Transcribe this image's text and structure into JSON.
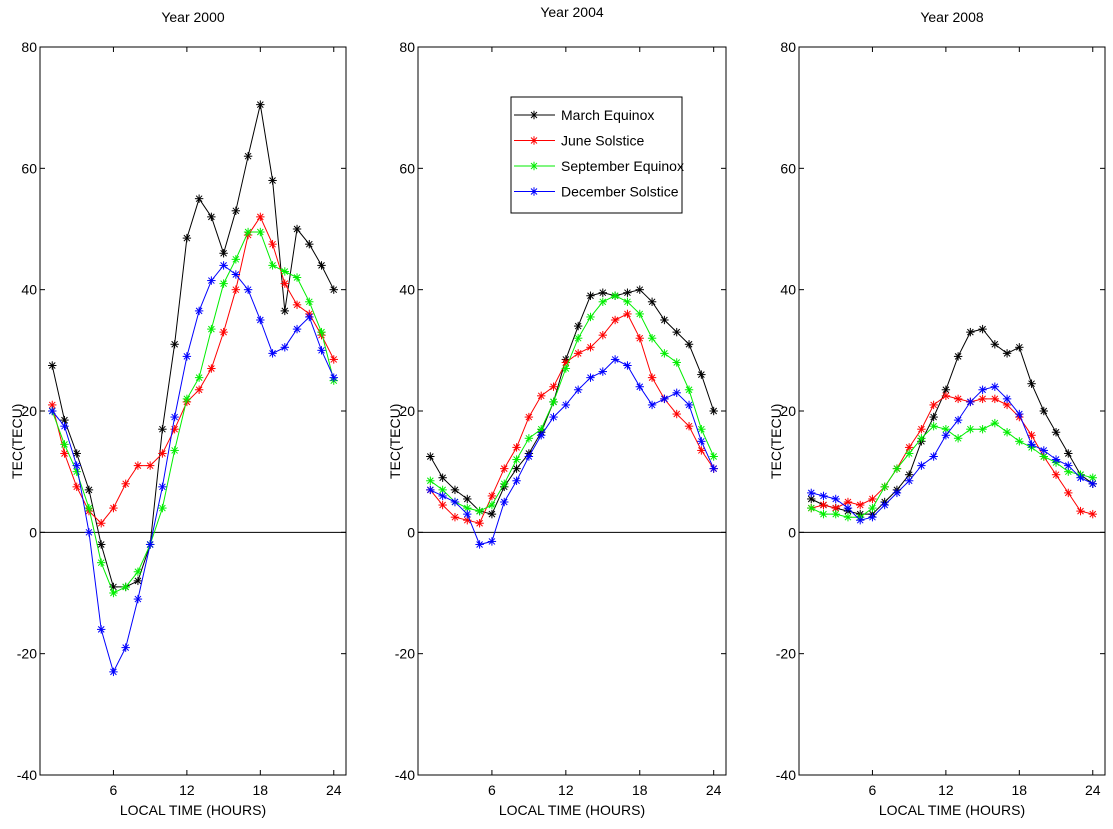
{
  "chart_data": [
    {
      "type": "line",
      "title": "Year 2000",
      "xlabel": "LOCAL TIME (HOURS)",
      "ylabel": "TEC(TECU)",
      "xlim": [
        0,
        25
      ],
      "ylim": [
        -40,
        80
      ],
      "xticks": [
        6,
        12,
        18,
        24
      ],
      "yticks": [
        -40,
        -20,
        0,
        20,
        40,
        60,
        80
      ],
      "grid": false,
      "legend": null,
      "x": [
        1,
        2,
        3,
        4,
        5,
        6,
        7,
        8,
        9,
        10,
        11,
        12,
        13,
        14,
        15,
        16,
        17,
        18,
        19,
        20,
        21,
        22,
        23,
        24
      ],
      "series": [
        {
          "name": "March Equinox",
          "color": "#000000",
          "values": [
            27.5,
            18.5,
            13,
            7,
            -2,
            -9,
            -9,
            -8,
            -2,
            17,
            31,
            48.5,
            55,
            52,
            46,
            53,
            62,
            70.5,
            58,
            36.5,
            50,
            47.5,
            44,
            40
          ]
        },
        {
          "name": "June Solstice",
          "color": "#ff0000",
          "values": [
            21,
            13,
            7.5,
            3.5,
            1.5,
            4,
            8,
            11,
            11,
            13,
            17,
            21.5,
            23.5,
            27,
            33,
            40,
            49,
            52,
            47.5,
            41,
            37.5,
            36,
            32.5,
            28.5
          ]
        },
        {
          "name": "September Equinox",
          "color": "#00ee00",
          "values": [
            20,
            14.5,
            10,
            4,
            -5,
            -10,
            -9,
            -6.5,
            -2,
            4,
            13.5,
            22,
            25.5,
            33.5,
            41,
            45,
            49.5,
            49.5,
            44,
            43,
            42,
            38,
            33,
            25
          ]
        },
        {
          "name": "December Solstice",
          "color": "#0000ff",
          "values": [
            20,
            17.5,
            11,
            0,
            -16,
            -23,
            -19,
            -11,
            -2,
            7.5,
            19,
            29,
            36.5,
            41.5,
            44,
            42.5,
            40,
            35,
            29.5,
            30.5,
            33.5,
            35.5,
            30,
            25.5
          ]
        }
      ]
    },
    {
      "type": "line",
      "title": "Year 2004",
      "xlabel": "LOCAL TIME (HOURS)",
      "ylabel": "TEC(TECU)",
      "xlim": [
        0,
        25
      ],
      "ylim": [
        -40,
        80
      ],
      "xticks": [
        6,
        12,
        18,
        24
      ],
      "yticks": [
        -40,
        -20,
        0,
        20,
        40,
        60,
        80
      ],
      "grid": false,
      "legend": "top-center",
      "x": [
        1,
        2,
        3,
        4,
        5,
        6,
        7,
        8,
        9,
        10,
        11,
        12,
        13,
        14,
        15,
        16,
        17,
        18,
        19,
        20,
        21,
        22,
        23,
        24
      ],
      "series": [
        {
          "name": "March Equinox",
          "color": "#000000",
          "values": [
            12.5,
            9,
            7,
            5.5,
            3.5,
            3,
            7.5,
            10.5,
            13,
            16.5,
            21.5,
            28.5,
            34,
            39,
            39.5,
            39,
            39.5,
            40,
            38,
            35,
            33,
            31,
            26,
            20
          ]
        },
        {
          "name": "June Solstice",
          "color": "#ff0000",
          "values": [
            7,
            4.5,
            2.5,
            2,
            1.5,
            6,
            10.5,
            14,
            19,
            22.5,
            24,
            28,
            29.5,
            30.5,
            32.5,
            35,
            36,
            32,
            25.5,
            22,
            19.5,
            17.5,
            13.5,
            10.5
          ]
        },
        {
          "name": "September Equinox",
          "color": "#00ee00",
          "values": [
            8.5,
            7,
            5,
            4,
            3.5,
            4.5,
            8,
            12,
            15.5,
            17,
            21.5,
            27,
            32,
            35.5,
            38,
            39,
            38,
            36,
            32,
            29.5,
            28,
            23.5,
            17,
            12.5
          ]
        },
        {
          "name": "December Solstice",
          "color": "#0000ff",
          "values": [
            7,
            6,
            5,
            3,
            -2,
            -1.5,
            5,
            8.5,
            12.5,
            16,
            19,
            21,
            23.5,
            25.5,
            26.5,
            28.5,
            27.5,
            24,
            21,
            22,
            23,
            21,
            15,
            10.5
          ]
        }
      ]
    },
    {
      "type": "line",
      "title": "Year 2008",
      "xlabel": "LOCAL TIME (HOURS)",
      "ylabel": "TEC(TECU)",
      "xlim": [
        0,
        25
      ],
      "ylim": [
        -40,
        80
      ],
      "xticks": [
        6,
        12,
        18,
        24
      ],
      "yticks": [
        -40,
        -20,
        0,
        20,
        40,
        60,
        80
      ],
      "grid": false,
      "legend": null,
      "x": [
        1,
        2,
        3,
        4,
        5,
        6,
        7,
        8,
        9,
        10,
        11,
        12,
        13,
        14,
        15,
        16,
        17,
        18,
        19,
        20,
        21,
        22,
        23,
        24
      ],
      "series": [
        {
          "name": "March Equinox",
          "color": "#000000",
          "values": [
            5.5,
            4.5,
            4,
            3.5,
            3,
            3,
            5,
            7,
            9.5,
            15,
            19,
            23.5,
            29,
            33,
            33.5,
            31,
            29.5,
            30.5,
            24.5,
            20,
            16.5,
            13,
            9.5,
            8
          ]
        },
        {
          "name": "June Solstice",
          "color": "#ff0000",
          "values": [
            4,
            4.5,
            4,
            5,
            4.5,
            5.5,
            7.5,
            10.5,
            14,
            17,
            21,
            22.5,
            22,
            21.5,
            22,
            22,
            21,
            19,
            16,
            12.5,
            9.5,
            6.5,
            3.5,
            3
          ]
        },
        {
          "name": "September Equinox",
          "color": "#00ee00",
          "values": [
            4,
            3,
            3,
            2.5,
            2.5,
            4,
            7.5,
            10.5,
            13,
            15.5,
            17.5,
            17,
            15.5,
            17,
            17,
            18,
            16.5,
            15,
            14,
            12.5,
            11.5,
            10,
            9.5,
            9
          ]
        },
        {
          "name": "December Solstice",
          "color": "#0000ff",
          "values": [
            6.5,
            6,
            5.5,
            4,
            2,
            2.5,
            4.5,
            6.5,
            8.5,
            11,
            12.5,
            16,
            18.5,
            21.5,
            23.5,
            24,
            22,
            19.5,
            14.5,
            13.5,
            12,
            11,
            9,
            8
          ]
        }
      ]
    }
  ]
}
